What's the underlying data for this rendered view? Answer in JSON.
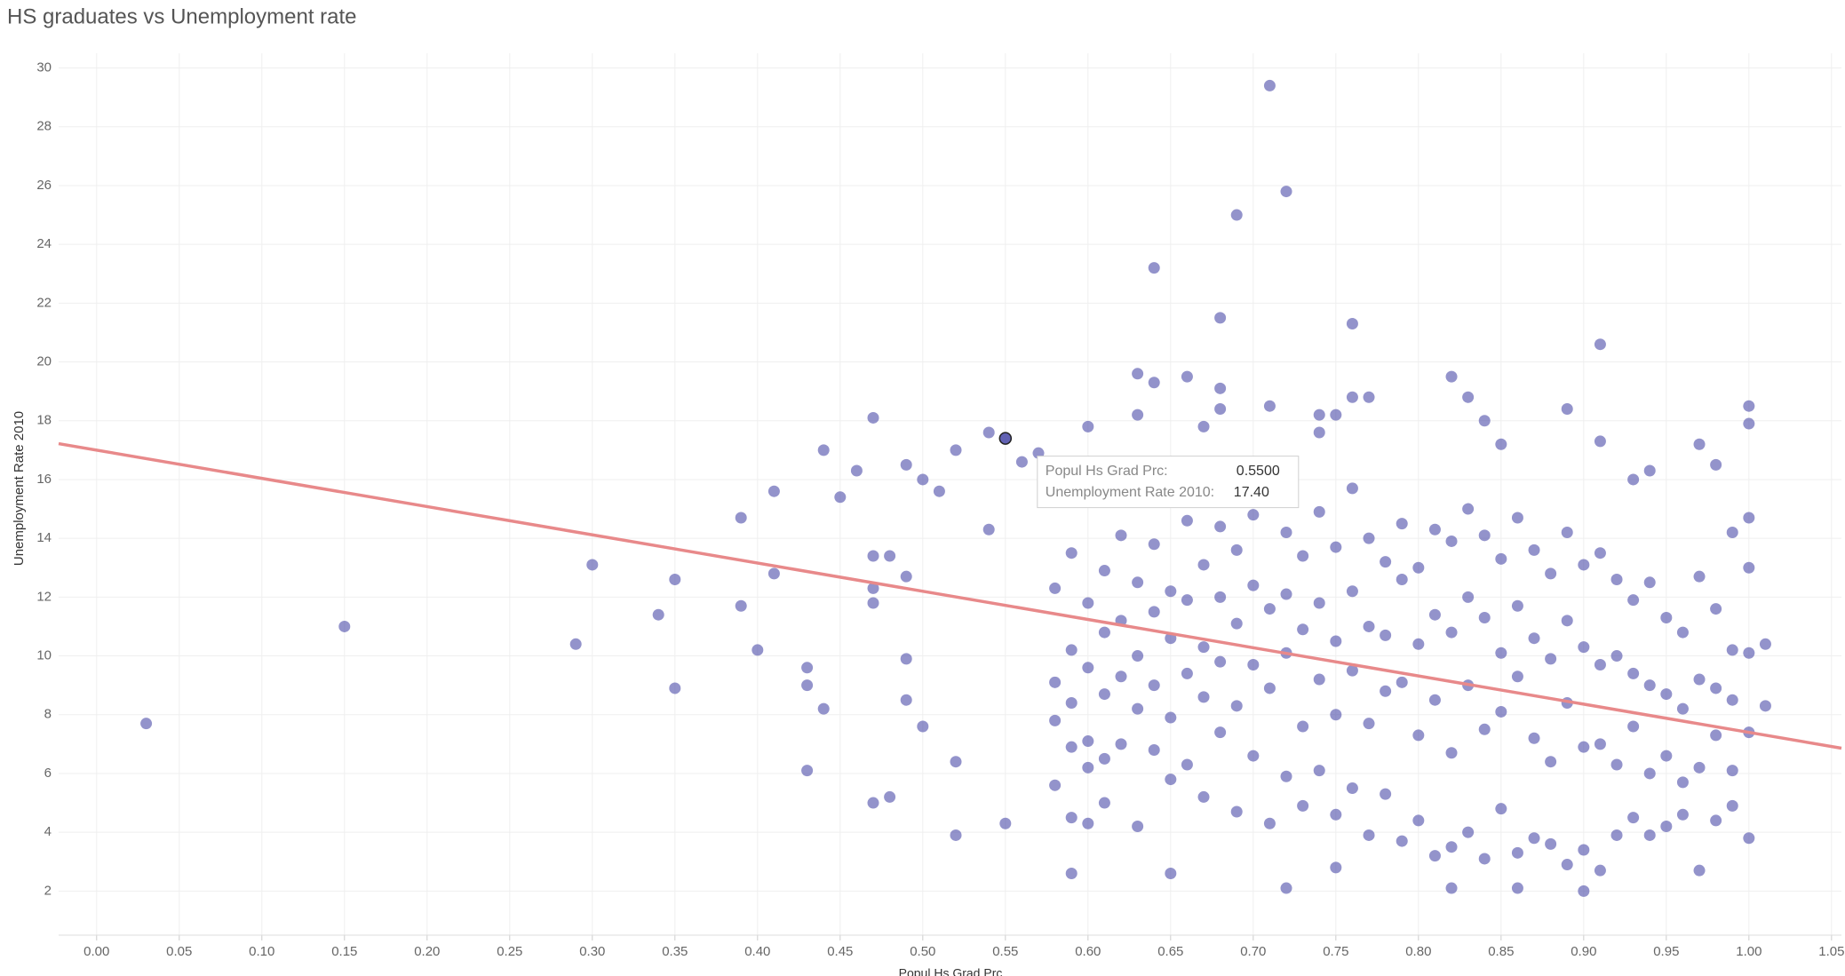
{
  "chart_data": {
    "type": "scatter",
    "title": "HS graduates vs Unemployment rate",
    "x_label": "Popul Hs Grad Prc",
    "y_label": "Unemployment Rate 2010",
    "color": "#4b4ba8",
    "grid": true,
    "xlim": [
      -0.023,
      1.056
    ],
    "ylim": [
      0.5,
      30.5
    ],
    "xticks": [
      {
        "value": 0,
        "label": "0.00"
      },
      {
        "value": 0.05,
        "label": "0.05"
      },
      {
        "value": 0.1,
        "label": "0.10"
      },
      {
        "value": 0.15,
        "label": "0.15"
      },
      {
        "value": 0.2,
        "label": "0.20"
      },
      {
        "value": 0.25,
        "label": "0.25"
      },
      {
        "value": 0.3,
        "label": "0.30"
      },
      {
        "value": 0.35,
        "label": "0.35"
      },
      {
        "value": 0.4,
        "label": "0.40"
      },
      {
        "value": 0.45,
        "label": "0.45"
      },
      {
        "value": 0.5,
        "label": "0.50"
      },
      {
        "value": 0.55,
        "label": "0.55"
      },
      {
        "value": 0.6,
        "label": "0.60"
      },
      {
        "value": 0.65,
        "label": "0.65"
      },
      {
        "value": 0.7,
        "label": "0.70"
      },
      {
        "value": 0.75,
        "label": "0.75"
      },
      {
        "value": 0.8,
        "label": "0.80"
      },
      {
        "value": 0.85,
        "label": "0.85"
      },
      {
        "value": 0.9,
        "label": "0.90"
      },
      {
        "value": 0.95,
        "label": "0.95"
      },
      {
        "value": 1,
        "label": "1.00"
      },
      {
        "value": 1.05,
        "label": "1.05"
      }
    ],
    "yticks": [
      2,
      4,
      6,
      8,
      10,
      12,
      14,
      16,
      18,
      20,
      22,
      24,
      26,
      28,
      30
    ],
    "x": [
      0.03,
      0.15,
      0.29,
      0.3,
      0.34,
      0.35,
      0.35,
      0.39,
      0.39,
      0.4,
      0.41,
      0.41,
      0.43,
      0.43,
      0.43,
      0.44,
      0.44,
      0.45,
      0.46,
      0.47,
      0.47,
      0.47,
      0.47,
      0.47,
      0.48,
      0.48,
      0.49,
      0.49,
      0.49,
      0.49,
      0.5,
      0.5,
      0.51,
      0.52,
      0.52,
      0.52,
      0.54,
      0.54,
      0.55,
      0.55,
      0.56,
      0.57,
      0.6,
      0.59,
      0.59,
      0.6,
      0.61,
      0.63,
      0.63,
      0.64,
      0.64,
      0.65,
      0.66,
      0.67,
      0.68,
      0.68,
      0.68,
      0.69,
      0.71,
      0.71,
      0.72,
      0.72,
      0.74,
      0.74,
      0.75,
      0.75,
      0.76,
      0.76,
      0.77,
      0.82,
      0.82,
      0.83,
      0.84,
      0.85,
      0.86,
      0.89,
      0.9,
      0.91,
      0.91,
      0.97,
      0.98,
      1.0,
      1.0,
      1.0,
      1.01,
      1.01,
      0.99,
      0.94,
      0.93,
      0.58,
      0.58,
      0.58,
      0.58,
      0.59,
      0.59,
      0.59,
      0.59,
      0.6,
      0.6,
      0.6,
      0.6,
      0.61,
      0.61,
      0.61,
      0.61,
      0.62,
      0.62,
      0.62,
      0.62,
      0.63,
      0.63,
      0.63,
      0.63,
      0.64,
      0.64,
      0.64,
      0.64,
      0.65,
      0.65,
      0.65,
      0.65,
      0.66,
      0.66,
      0.66,
      0.66,
      0.67,
      0.67,
      0.67,
      0.67,
      0.68,
      0.68,
      0.68,
      0.68,
      0.69,
      0.69,
      0.69,
      0.69,
      0.7,
      0.7,
      0.7,
      0.7,
      0.71,
      0.71,
      0.71,
      0.71,
      0.72,
      0.72,
      0.72,
      0.72,
      0.73,
      0.73,
      0.73,
      0.73,
      0.74,
      0.74,
      0.74,
      0.74,
      0.75,
      0.75,
      0.75,
      0.75,
      0.76,
      0.76,
      0.76,
      0.76,
      0.77,
      0.77,
      0.77,
      0.77,
      0.78,
      0.78,
      0.78,
      0.78,
      0.79,
      0.79,
      0.79,
      0.79,
      0.8,
      0.8,
      0.8,
      0.8,
      0.81,
      0.81,
      0.81,
      0.81,
      0.82,
      0.82,
      0.82,
      0.82,
      0.83,
      0.83,
      0.83,
      0.83,
      0.84,
      0.84,
      0.84,
      0.84,
      0.85,
      0.85,
      0.85,
      0.85,
      0.86,
      0.86,
      0.86,
      0.86,
      0.87,
      0.87,
      0.87,
      0.87,
      0.88,
      0.88,
      0.88,
      0.88,
      0.89,
      0.89,
      0.89,
      0.89,
      0.9,
      0.9,
      0.9,
      0.9,
      0.91,
      0.91,
      0.91,
      0.91,
      0.92,
      0.92,
      0.92,
      0.92,
      0.93,
      0.93,
      0.93,
      0.93,
      0.94,
      0.94,
      0.94,
      0.94,
      0.95,
      0.95,
      0.95,
      0.95,
      0.96,
      0.96,
      0.96,
      0.96,
      0.97,
      0.97,
      0.97,
      0.97,
      0.98,
      0.98,
      0.98,
      0.98,
      0.99,
      0.99,
      0.99,
      0.99,
      1.0,
      1.0,
      1.0,
      1.0
    ],
    "values": [
      7.7,
      11.0,
      10.4,
      13.1,
      11.4,
      12.6,
      8.9,
      14.7,
      11.7,
      10.2,
      15.6,
      12.8,
      9.6,
      9.0,
      6.1,
      17.0,
      8.2,
      15.4,
      16.3,
      18.1,
      13.4,
      12.3,
      11.8,
      5.0,
      13.4,
      5.2,
      16.5,
      12.7,
      9.9,
      8.5,
      16.0,
      7.6,
      15.6,
      17.0,
      6.4,
      3.9,
      17.6,
      14.3,
      17.4,
      4.3,
      16.6,
      16.9,
      17.8,
      4.5,
      2.6,
      4.3,
      5.0,
      19.6,
      18.2,
      23.2,
      19.3,
      2.6,
      19.5,
      17.8,
      21.5,
      19.1,
      18.4,
      25.0,
      29.4,
      18.5,
      25.8,
      2.1,
      18.2,
      17.6,
      18.2,
      2.8,
      21.3,
      18.8,
      18.8,
      19.5,
      2.1,
      18.8,
      18.0,
      17.2,
      2.1,
      18.4,
      2.0,
      20.6,
      17.3,
      17.2,
      16.5,
      18.5,
      17.9,
      14.7,
      10.4,
      8.3,
      14.2,
      16.3,
      16.0,
      12.3,
      9.1,
      7.8,
      5.6,
      13.5,
      10.2,
      8.4,
      6.9,
      11.8,
      9.6,
      7.1,
      6.2,
      12.9,
      10.8,
      8.7,
      6.5,
      14.1,
      11.2,
      9.3,
      7.0,
      12.5,
      10.0,
      8.2,
      4.2,
      13.8,
      11.5,
      9.0,
      6.8,
      12.2,
      10.6,
      7.9,
      5.8,
      14.6,
      11.9,
      9.4,
      6.3,
      13.1,
      10.3,
      8.6,
      5.2,
      14.4,
      12.0,
      9.8,
      7.4,
      13.6,
      11.1,
      8.3,
      4.7,
      14.8,
      12.4,
      9.7,
      6.6,
      15.9,
      11.6,
      8.9,
      4.3,
      14.2,
      12.1,
      10.1,
      5.9,
      13.4,
      10.9,
      7.6,
      4.9,
      14.9,
      11.8,
      9.2,
      6.1,
      13.7,
      10.5,
      8.0,
      4.6,
      15.7,
      12.2,
      9.5,
      5.5,
      14.0,
      11.0,
      7.7,
      3.9,
      13.2,
      10.7,
      8.8,
      5.3,
      14.5,
      12.6,
      9.1,
      3.7,
      13.0,
      10.4,
      7.3,
      4.4,
      14.3,
      11.4,
      8.5,
      3.2,
      13.9,
      10.8,
      6.7,
      3.5,
      15.0,
      12.0,
      9.0,
      4.0,
      14.1,
      11.3,
      7.5,
      3.1,
      13.3,
      10.1,
      8.1,
      4.8,
      14.7,
      11.7,
      9.3,
      3.3,
      13.6,
      10.6,
      7.2,
      3.8,
      12.8,
      9.9,
      6.4,
      3.6,
      14.2,
      11.2,
      8.4,
      2.9,
      13.1,
      10.3,
      6.9,
      3.4,
      13.5,
      9.7,
      7.0,
      2.7,
      12.6,
      10.0,
      6.3,
      3.9,
      11.9,
      9.4,
      7.6,
      4.5,
      12.5,
      9.0,
      6.0,
      3.9,
      11.3,
      8.7,
      6.6,
      4.2,
      10.8,
      8.2,
      5.7,
      4.6,
      12.7,
      9.2,
      6.2,
      2.7,
      11.6,
      8.9,
      7.3,
      4.4,
      10.2,
      8.5,
      6.1,
      4.9,
      13.0,
      10.1,
      7.4,
      3.8
    ],
    "trend_line": {
      "color": "#e8898a",
      "x": [
        -0.023,
        1.056
      ],
      "values": [
        17.22,
        6.86
      ]
    },
    "tooltip": {
      "rows": [
        [
          "Popul Hs Grad Prc:",
          "0.5500"
        ],
        [
          "Unemployment Rate 2010:",
          "17.40"
        ]
      ]
    }
  }
}
